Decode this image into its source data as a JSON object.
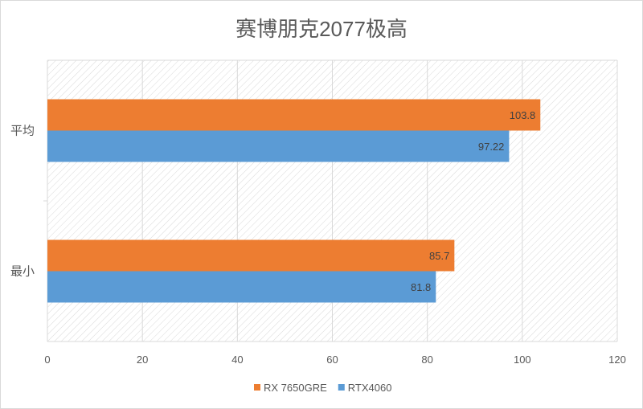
{
  "chart_data": {
    "type": "bar",
    "orientation": "horizontal",
    "title": "赛博朋克2077极高",
    "categories": [
      "平均",
      "最小"
    ],
    "series": [
      {
        "name": "RX 7650GRE",
        "color": "#ED7D31",
        "values": [
          103.8,
          85.7
        ],
        "labels": [
          "103.8",
          "85.7"
        ]
      },
      {
        "name": "RTX4060",
        "color": "#5B9BD5",
        "values": [
          97.22,
          81.8
        ],
        "labels": [
          "97.22",
          "81.8"
        ]
      }
    ],
    "xlim": [
      0,
      120
    ],
    "xticks": [
      "0",
      "20",
      "40",
      "60",
      "80",
      "100",
      "120"
    ],
    "xtick_values": [
      0,
      20,
      40,
      60,
      80,
      100,
      120
    ],
    "grid": true,
    "plot_background": "diagonal hatch",
    "legend": "bottom"
  }
}
